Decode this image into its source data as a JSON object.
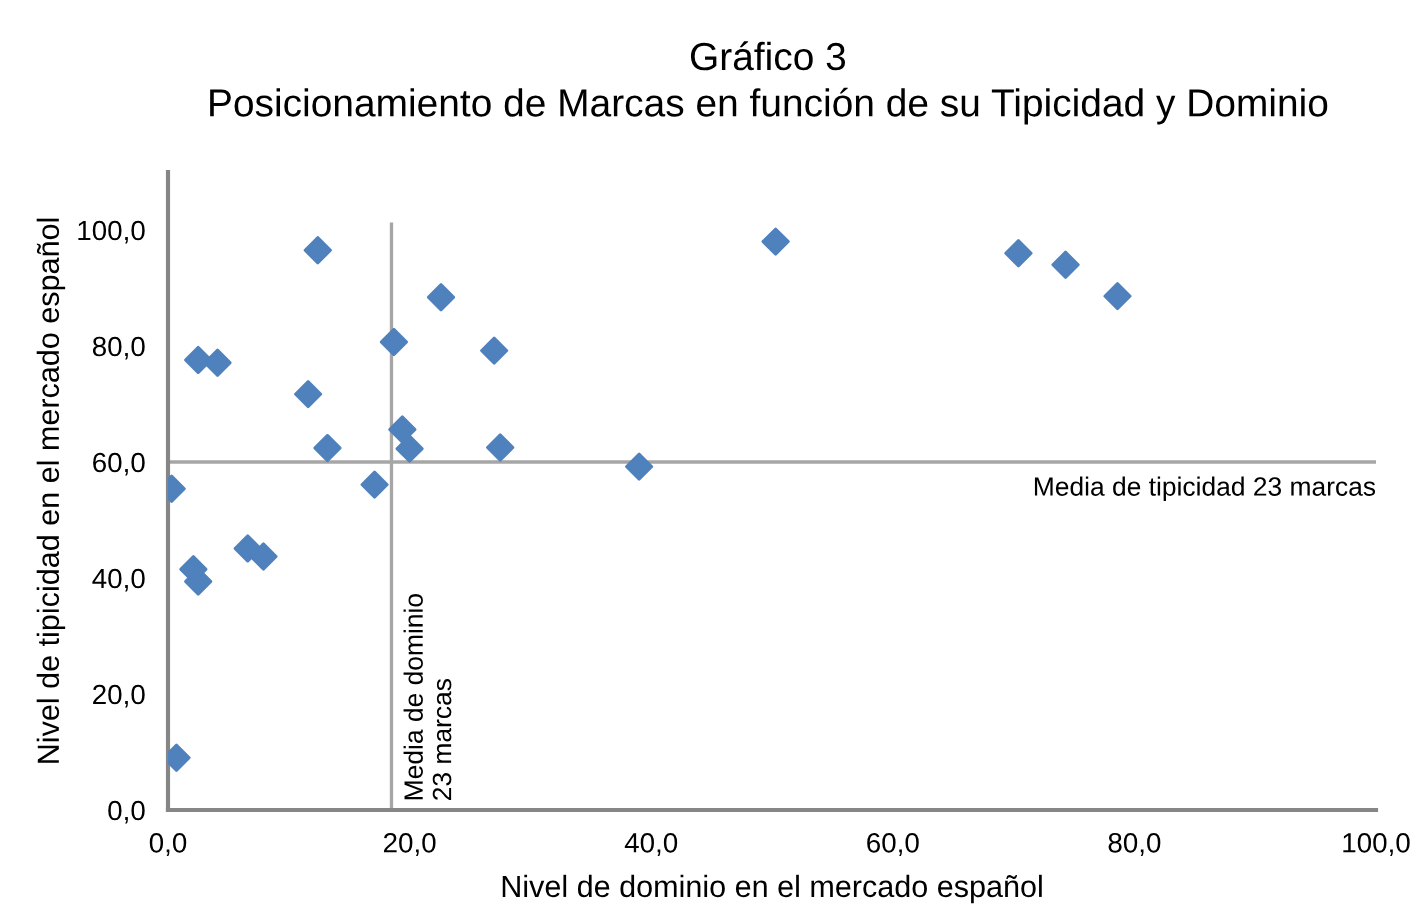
{
  "chart_data": {
    "type": "scatter",
    "title": "Gráfico 3",
    "subtitle": "Posicionamiento de Marcas en función de su Tipicidad y Dominio",
    "xlabel": "Nivel de dominio en el mercado español",
    "ylabel": "Nivel de tipicidad en el mercado español",
    "xlim": [
      0,
      100
    ],
    "ylim": [
      0,
      110
    ],
    "xticks": [
      {
        "value": 0,
        "label": "0,0"
      },
      {
        "value": 20,
        "label": "20,0"
      },
      {
        "value": 40,
        "label": "40,0"
      },
      {
        "value": 60,
        "label": "60,0"
      },
      {
        "value": 80,
        "label": "80,0"
      },
      {
        "value": 100,
        "label": "100,0"
      }
    ],
    "yticks": [
      {
        "value": 0,
        "label": "0,0"
      },
      {
        "value": 20,
        "label": "20,0"
      },
      {
        "value": 40,
        "label": "40,0"
      },
      {
        "value": 60,
        "label": "60,0"
      },
      {
        "value": 80,
        "label": "80,0"
      },
      {
        "value": 100,
        "label": "100,0"
      }
    ],
    "series": [
      {
        "color": "#4f81bd",
        "x": [
          0.3,
          2.5,
          4.1,
          12.4,
          11.6,
          13.2,
          17.1,
          18.7,
          19.4,
          20.0,
          22.6,
          27.0,
          27.5,
          39.0,
          2.1,
          2.5,
          6.6,
          7.9,
          0.7,
          50.3,
          70.4,
          74.3,
          78.6
        ],
        "values": [
          55.4,
          77.6,
          77.1,
          96.5,
          71.7,
          62.4,
          56.1,
          80.7,
          65.6,
          62.3,
          88.4,
          79.2,
          62.5,
          59.2,
          41.5,
          39.4,
          45.1,
          43.7,
          9.0,
          98.0,
          96.0,
          94.0,
          88.6
        ]
      }
    ],
    "marker": "diamond",
    "grid": false,
    "legend": false,
    "ref_lines": [
      {
        "axis": "x",
        "value": 18.5,
        "label": "Media de dominio\n23 marcas",
        "color": "#a6a6a6"
      },
      {
        "axis": "y",
        "value": 60,
        "label": "Media de tipicidad 23 marcas",
        "color": "#a6a6a6"
      }
    ]
  }
}
